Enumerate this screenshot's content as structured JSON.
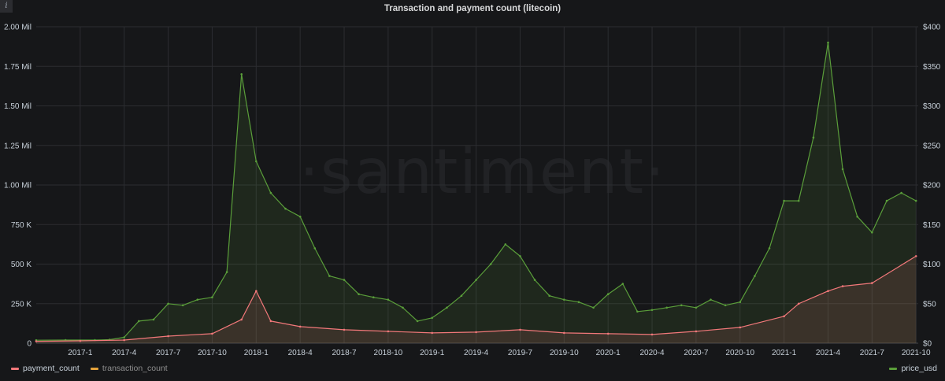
{
  "panel": {
    "title": "Transaction and payment count (litecoin)",
    "info_icon": "i",
    "watermark": "·santiment·"
  },
  "legend": {
    "left": [
      {
        "label": "payment_count",
        "color": "#f2787a"
      },
      {
        "label": "transaction_count",
        "color": "#e5a33b"
      }
    ],
    "right": [
      {
        "label": "price_usd",
        "color": "#5a9e3a"
      }
    ]
  },
  "chart_data": {
    "type": "line",
    "title": "Transaction and payment count (litecoin)",
    "x_ticks": [
      "2017-1",
      "2017-4",
      "2017-7",
      "2017-10",
      "2018-1",
      "2018-4",
      "2018-7",
      "2018-10",
      "2019-1",
      "2019-4",
      "2019-7",
      "2019-10",
      "2020-1",
      "2020-4",
      "2020-7",
      "2020-10",
      "2021-1",
      "2021-4",
      "2021-7",
      "2021-10"
    ],
    "y_left_ticks": [
      "0",
      "250 K",
      "500 K",
      "750 K",
      "1.00 Mil",
      "1.25 Mil",
      "1.50 Mil",
      "1.75 Mil",
      "2.00 Mil"
    ],
    "y_right_ticks": [
      "$0",
      "$50",
      "$100",
      "$150",
      "$200",
      "$250",
      "$300",
      "$350",
      "$400"
    ],
    "ylim_left": [
      0,
      2000000
    ],
    "ylim_right": [
      0,
      400
    ],
    "x_start": "2016-10",
    "x_end": "2021-10",
    "grid": true,
    "series": [
      {
        "name": "price_usd",
        "axis": "right",
        "color": "#5a9e3a",
        "x": [
          "2016-10",
          "2016-12",
          "2017-02",
          "2017-03",
          "2017-04",
          "2017-05",
          "2017-06",
          "2017-07",
          "2017-08",
          "2017-09",
          "2017-10",
          "2017-11",
          "2017-12",
          "2018-01",
          "2018-02",
          "2018-03",
          "2018-04",
          "2018-05",
          "2018-06",
          "2018-07",
          "2018-08",
          "2018-09",
          "2018-10",
          "2018-11",
          "2018-12",
          "2019-01",
          "2019-02",
          "2019-03",
          "2019-04",
          "2019-05",
          "2019-06",
          "2019-07",
          "2019-08",
          "2019-09",
          "2019-10",
          "2019-11",
          "2019-12",
          "2020-01",
          "2020-02",
          "2020-03",
          "2020-04",
          "2020-05",
          "2020-06",
          "2020-07",
          "2020-08",
          "2020-09",
          "2020-10",
          "2020-11",
          "2020-12",
          "2021-01",
          "2021-02",
          "2021-03",
          "2021-04",
          "2021-05",
          "2021-06",
          "2021-07",
          "2021-08",
          "2021-09",
          "2021-10"
        ],
        "values": [
          3.8,
          4.0,
          4.0,
          4.5,
          7.5,
          28,
          30,
          50,
          48,
          55,
          58,
          90,
          340,
          230,
          190,
          170,
          160,
          120,
          85,
          80,
          62,
          58,
          55,
          45,
          28,
          32,
          45,
          60,
          80,
          100,
          125,
          110,
          80,
          60,
          55,
          52,
          45,
          62,
          75,
          40,
          42,
          45,
          48,
          45,
          55,
          48,
          52,
          85,
          120,
          180,
          180,
          260,
          380,
          220,
          160,
          140,
          180,
          190,
          180
        ]
      },
      {
        "name": "payment_count",
        "axis": "left",
        "color": "#f2787a",
        "x": [
          "2016-10",
          "2017-01",
          "2017-04",
          "2017-07",
          "2017-10",
          "2017-12",
          "2018-01",
          "2018-02",
          "2018-04",
          "2018-07",
          "2018-10",
          "2019-01",
          "2019-04",
          "2019-07",
          "2019-10",
          "2020-01",
          "2020-04",
          "2020-07",
          "2020-10",
          "2021-01",
          "2021-02",
          "2021-04",
          "2021-05",
          "2021-07",
          "2021-10"
        ],
        "values": [
          12000,
          15000,
          20000,
          45000,
          60000,
          150000,
          330000,
          140000,
          105000,
          85000,
          75000,
          65000,
          70000,
          85000,
          65000,
          60000,
          55000,
          75000,
          100000,
          170000,
          250000,
          330000,
          360000,
          380000,
          550000
        ]
      }
    ]
  }
}
